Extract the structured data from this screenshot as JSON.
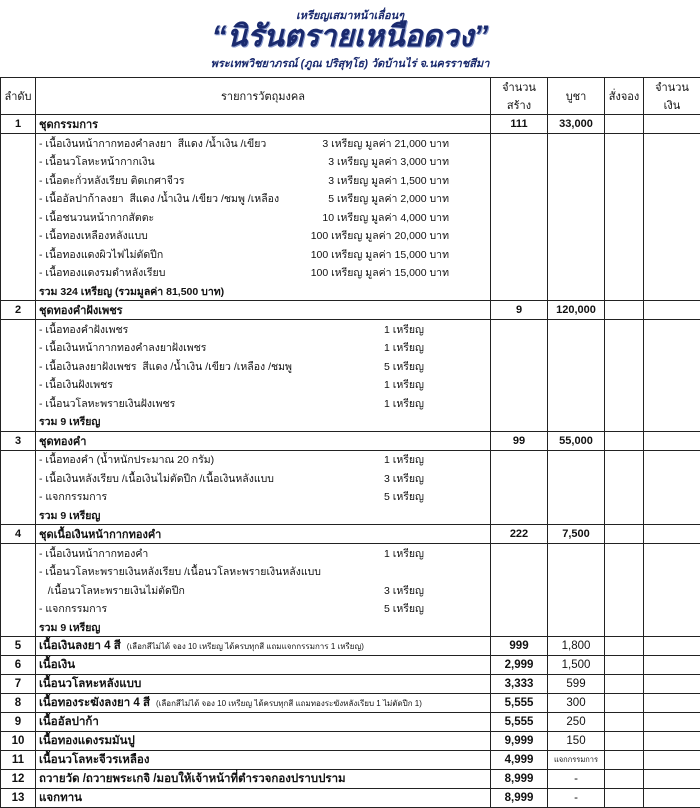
{
  "header": {
    "line1": "เหรียญเสมาหน้าเลื่อนๆ",
    "title": "“นิรันตรายเหนือดวง”",
    "line3": "พระเทพวิชยาภรณ์ (ภูณ ปริสุทฺโธ) วัดบ้านไร่ จ.นครราชสีมา"
  },
  "columns": [
    "ลำดับ",
    "รายการวัตถุมงคล",
    "จำนวนสร้าง",
    "บูชา",
    "สั่งจอง",
    "จำนวนเงิน"
  ],
  "sets": [
    {
      "no": "1",
      "name": "ชุดกรรมการ",
      "built": "111",
      "price": "33,000",
      "items": [
        {
          "name": "- เนื้อเงินหน้ากากทองคำลงยา  สีแดง /น้ำเงิน /เขียว",
          "qty": "3 เหรียญ มูลค่า 21,000 บาท"
        },
        {
          "name": "- เนื้อนวโลหะหน้ากากเงิน",
          "qty": "3 เหรียญ มูลค่า 3,000 บาท"
        },
        {
          "name": "- เนื้อตะกั่วหลังเรียบ ติดเกศาจีวร",
          "qty": "3 เหรียญ มูลค่า 1,500 บาท"
        },
        {
          "name": "- เนื้ออัลปาก้าลงยา  สีแดง /น้ำเงิน /เขียว /ชมพู /เหลือง",
          "qty": "5 เหรียญ มูลค่า 2,000 บาท"
        },
        {
          "name": "- เนื้อชนวนหน้ากากสัตตะ",
          "qty": "10 เหรียญ มูลค่า 4,000 บาท"
        },
        {
          "name": "- เนื้อทองเหลืองหลังแบบ",
          "qty": "100 เหรียญ มูลค่า 20,000 บาท"
        },
        {
          "name": "- เนื้อทองแดงผิวไฟไม่ตัดปีก",
          "qty": "100 เหรียญ มูลค่า 15,000 บาท"
        },
        {
          "name": "- เนื้อทองแดงรมดำหลังเรียบ",
          "qty": "100 เหรียญ มูลค่า 15,000 บาท"
        }
      ],
      "total": "รวม 324 เหรียญ (รวมมูลค่า 81,500 บาท)"
    },
    {
      "no": "2",
      "name": "ชุดทองคำฝังเพชร",
      "built": "9",
      "price": "120,000",
      "items": [
        {
          "name": "- เนื้อทองคำฝังเพชร",
          "qty": "1 เหรียญ"
        },
        {
          "name": "- เนื้อเงินหน้ากากทองคำลงยาฝังเพชร",
          "qty": "1 เหรียญ"
        },
        {
          "name": "- เนื้อเงินลงยาฝังเพชร  สีแดง /น้ำเงิน /เขียว /เหลือง /ชมพู",
          "qty": "5 เหรียญ"
        },
        {
          "name": "- เนื้อเงินฝังเพชร",
          "qty": "1 เหรียญ"
        },
        {
          "name": "- เนื้อนวโลหะพรายเงินฝังเพชร",
          "qty": "1 เหรียญ"
        }
      ],
      "total": "รวม 9 เหรียญ"
    },
    {
      "no": "3",
      "name": "ชุดทองคำ",
      "built": "99",
      "price": "55,000",
      "items": [
        {
          "name": "- เนื้อทองคำ (น้ำหนักประมาณ 20 กรัม)",
          "qty": "1 เหรียญ"
        },
        {
          "name": "- เนื้อเงินหลังเรียบ /เนื้อเงินไม่ตัดปีก /เนื้อเงินหลังแบบ",
          "qty": "3 เหรียญ"
        },
        {
          "name": "- แจกกรรมการ",
          "qty": "5 เหรียญ"
        }
      ],
      "total": "รวม 9 เหรียญ"
    },
    {
      "no": "4",
      "name": "ชุดเนื้อเงินหน้ากากทองคำ",
      "built": "222",
      "price": "7,500",
      "items": [
        {
          "name": "- เนื้อเงินหน้ากากทองคำ",
          "qty": "1 เหรียญ"
        },
        {
          "name": "- เนื้อนวโลหะพรายเงินหลังเรียบ /เนื้อนวโลหะพรายเงินหลังแบบ",
          "qty": ""
        },
        {
          "name": "   /เนื้อนวโลหะพรายเงินไม่ตัดปีก",
          "qty": "3 เหรียญ"
        },
        {
          "name": "- แจกกรรมการ",
          "qty": "5 เหรียญ"
        }
      ],
      "total": "รวม 9 เหรียญ"
    }
  ],
  "rows": [
    {
      "no": "5",
      "name": "เนื้อเงินลงยา 4 สี",
      "note": "(เลือกสีไม่ได้ จอง 10 เหรียญ ได้ครบทุกสี  แถมแจกกรรมการ 1 เหรียญ)",
      "built": "999",
      "price": "1,800"
    },
    {
      "no": "6",
      "name": "เนื้อเงิน",
      "note": "",
      "built": "2,999",
      "price": "1,500"
    },
    {
      "no": "7",
      "name": "เนื้อนวโลหะหลังแบบ",
      "note": "",
      "built": "3,333",
      "price": "599"
    },
    {
      "no": "8",
      "name": "เนื้อทองระฆังลงยา 4 สี",
      "note": "(เลือกสีไม่ได้ จอง 10 เหรียญ ได้ครบทุกสี  แถมทองระฆังหลังเรียบ 1 ไม่ตัดปีก 1)",
      "built": "5,555",
      "price": "300"
    },
    {
      "no": "9",
      "name": "เนื้ออัลปาก้า",
      "note": "",
      "built": "5,555",
      "price": "250"
    },
    {
      "no": "10",
      "name": "เนื้อทองแดงรมมันปู",
      "note": "",
      "built": "9,999",
      "price": "150"
    },
    {
      "no": "11",
      "name": "เนื้อนวโลหะจีวรเหลือง",
      "note": "",
      "built": "4,999",
      "price": "แจกกรรมการ"
    },
    {
      "no": "12",
      "name": "ถวายวัด /ถวายพระเกจิ /มอบให้เจ้าหน้าที่ตำรวจกองปราบปราม",
      "note": "",
      "built": "8,999",
      "price": "-"
    },
    {
      "no": "13",
      "name": "แจกทาน",
      "note": "",
      "built": "8,999",
      "price": "-"
    }
  ]
}
